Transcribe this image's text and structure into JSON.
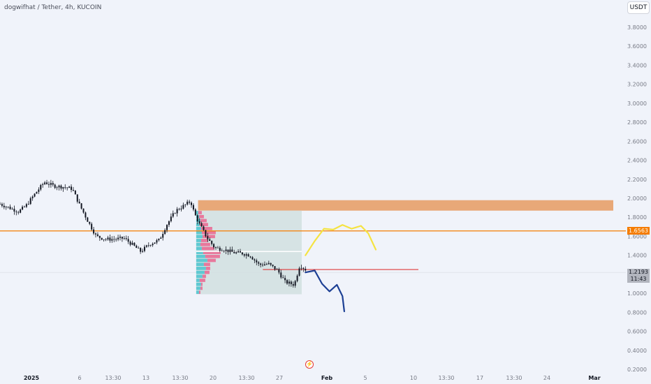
{
  "header": {
    "symbol_title": "dogwifhat / Tether, 4h, KUCOIN"
  },
  "toolbar": {
    "currency_label": "USDT"
  },
  "price_tags": {
    "level_price": "1.6563",
    "last_price": "1.2193",
    "countdown": "11:43"
  },
  "icons": {
    "flash": "lightning-icon"
  },
  "colors": {
    "background": "#f0f3fa",
    "candle": "#131722",
    "resistance_zone": "#e8a878",
    "level_line": "#f57c00",
    "support_line": "#e03a3a",
    "bull_path": "#f5e342",
    "bear_path": "#1c3f94",
    "volume_profile_box": "#d0dfdf",
    "volume_up": "#5ec9d2",
    "volume_down": "#e8789c"
  },
  "chart_data": {
    "type": "candlestick",
    "title": "dogwifhat / Tether, 4h, KUCOIN",
    "y_axis": {
      "ticks": [
        "3.8000",
        "3.6000",
        "3.4000",
        "3.2000",
        "3.0000",
        "2.8000",
        "2.6000",
        "2.4000",
        "2.2000",
        "2.0000",
        "1.8000",
        "1.6000",
        "1.4000",
        "1.2000",
        "1.0000",
        "0.8000",
        "0.6000",
        "0.4000",
        "0.2000"
      ],
      "range": [
        0.2,
        3.8
      ]
    },
    "x_axis": {
      "ticks": [
        "2025",
        "6",
        "13:30",
        "13",
        "13:30",
        "20",
        "13:30",
        "27",
        "Feb",
        "5",
        "10",
        "13:30",
        "17",
        "13:30",
        "24",
        "Mar"
      ]
    },
    "price_path": [
      {
        "x": 0,
        "y": 1.94
      },
      {
        "x": 0.5,
        "y": 1.9
      },
      {
        "x": 1.0,
        "y": 1.86
      },
      {
        "x": 1.4,
        "y": 1.92
      },
      {
        "x": 1.9,
        "y": 2.05
      },
      {
        "x": 2.4,
        "y": 2.17
      },
      {
        "x": 2.9,
        "y": 2.13
      },
      {
        "x": 3.4,
        "y": 2.12
      },
      {
        "x": 3.9,
        "y": 2.1
      },
      {
        "x": 4.3,
        "y": 1.93
      },
      {
        "x": 4.8,
        "y": 1.74
      },
      {
        "x": 5.2,
        "y": 1.6
      },
      {
        "x": 5.7,
        "y": 1.57
      },
      {
        "x": 6.2,
        "y": 1.57
      },
      {
        "x": 6.7,
        "y": 1.58
      },
      {
        "x": 7.1,
        "y": 1.52
      },
      {
        "x": 7.6,
        "y": 1.44
      },
      {
        "x": 8.1,
        "y": 1.52
      },
      {
        "x": 8.6,
        "y": 1.56
      },
      {
        "x": 9.0,
        "y": 1.72
      },
      {
        "x": 9.5,
        "y": 1.87
      },
      {
        "x": 10.0,
        "y": 1.93
      },
      {
        "x": 10.3,
        "y": 1.97
      },
      {
        "x": 10.5,
        "y": 1.84
      },
      {
        "x": 10.8,
        "y": 1.72
      },
      {
        "x": 11.2,
        "y": 1.58
      },
      {
        "x": 11.6,
        "y": 1.48
      },
      {
        "x": 12.1,
        "y": 1.46
      },
      {
        "x": 12.6,
        "y": 1.43
      },
      {
        "x": 13.1,
        "y": 1.42
      },
      {
        "x": 13.5,
        "y": 1.4
      },
      {
        "x": 14.0,
        "y": 1.3
      },
      {
        "x": 14.5,
        "y": 1.31
      },
      {
        "x": 15.0,
        "y": 1.24
      },
      {
        "x": 15.4,
        "y": 1.12
      },
      {
        "x": 15.9,
        "y": 1.09
      },
      {
        "x": 16.2,
        "y": 1.3
      },
      {
        "x": 16.5,
        "y": 1.25
      }
    ],
    "projections": [
      {
        "path": [
          [
            16.5,
            1.4
          ],
          [
            17.0,
            1.55
          ],
          [
            17.5,
            1.68
          ],
          [
            18.0,
            1.67
          ],
          [
            18.5,
            1.72
          ],
          [
            19.0,
            1.68
          ],
          [
            19.5,
            1.71
          ],
          [
            19.9,
            1.63
          ],
          [
            20.3,
            1.46
          ]
        ]
      },
      {
        "path": [
          [
            16.5,
            1.22
          ],
          [
            17.0,
            1.24
          ],
          [
            17.4,
            1.1
          ],
          [
            17.8,
            1.02
          ],
          [
            18.2,
            1.09
          ],
          [
            18.5,
            0.97
          ],
          [
            18.6,
            0.81
          ]
        ]
      }
    ],
    "levels": [
      {
        "price": 1.6563
      },
      {
        "price": 1.25
      }
    ],
    "zones": [
      {
        "top": 1.98,
        "bottom": 1.87
      }
    ],
    "volume_profile": {
      "price_range": [
        0.99,
        1.87
      ],
      "value_area_line": 1.44,
      "rows": [
        {
          "up": 4,
          "down": 2
        },
        {
          "up": 6,
          "down": 3
        },
        {
          "up": 7,
          "down": 2
        },
        {
          "up": 5,
          "down": 8
        },
        {
          "up": 9,
          "down": 5
        },
        {
          "up": 12,
          "down": 7
        },
        {
          "up": 14,
          "down": 6
        },
        {
          "up": 11,
          "down": 9
        },
        {
          "up": 16,
          "down": 12
        },
        {
          "up": 13,
          "down": 21
        },
        {
          "up": 10,
          "down": 25
        },
        {
          "up": 8,
          "down": 18
        },
        {
          "up": 6,
          "down": 14
        },
        {
          "up": 7,
          "down": 10
        },
        {
          "up": 9,
          "down": 18
        },
        {
          "up": 8,
          "down": 20
        },
        {
          "up": 7,
          "down": 16
        },
        {
          "up": 5,
          "down": 12
        },
        {
          "up": 6,
          "down": 9
        },
        {
          "up": 4,
          "down": 7
        },
        {
          "up": 3,
          "down": 5
        }
      ]
    }
  }
}
